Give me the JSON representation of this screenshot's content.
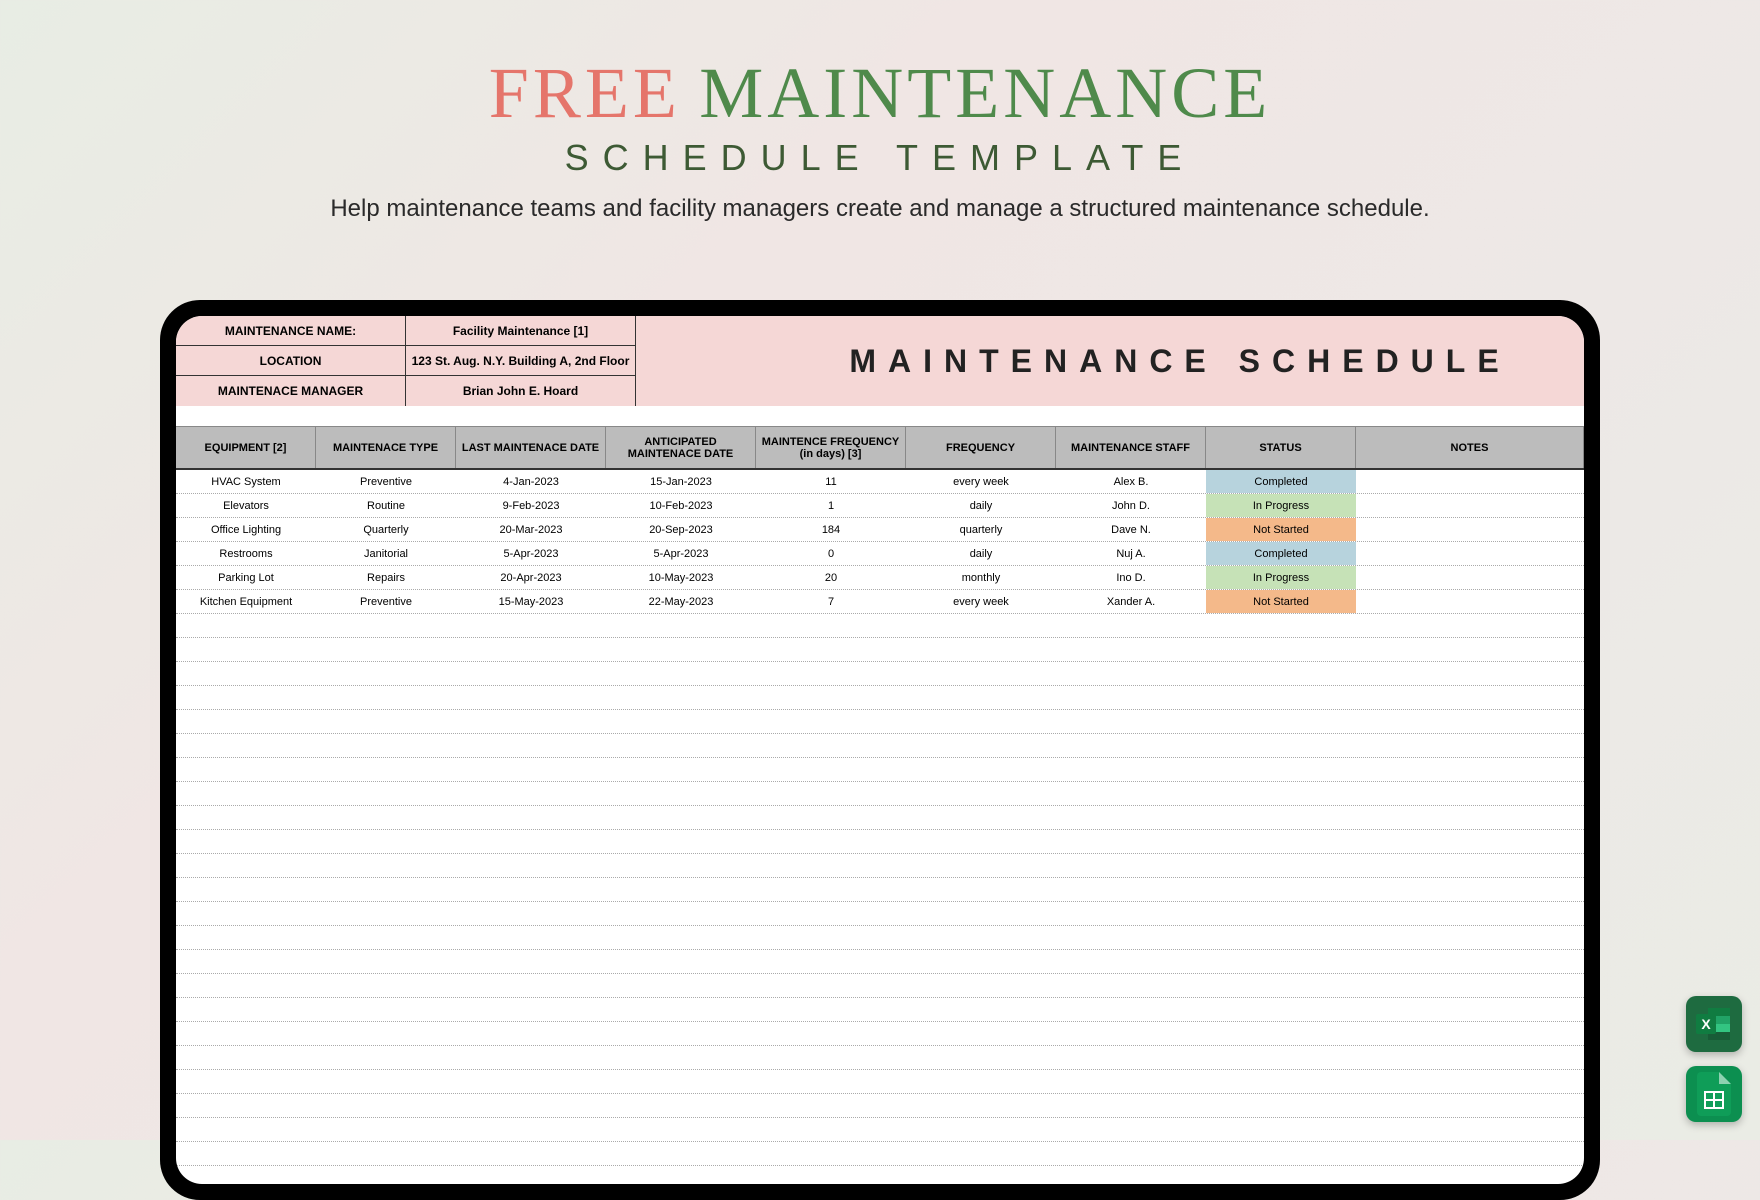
{
  "hero": {
    "title_word1": "FREE",
    "title_word2": "MAINTENANCE",
    "subtitle": "SCHEDULE TEMPLATE",
    "description": "Help maintenance teams and facility managers create and manage a structured maintenance schedule.",
    "colors": {
      "word1": "#e5756b",
      "word2": "#4f8a4b",
      "subtitle": "#3d5a34",
      "desc": "#2a2a2a"
    }
  },
  "sheet": {
    "header_bg": "#f5d7d6",
    "big_title": "MAINTENANCE SCHEDULE",
    "meta": [
      {
        "label": "MAINTENANCE NAME:",
        "value": "Facility Maintenance [1]"
      },
      {
        "label": "LOCATION",
        "value": "123 St. Aug. N.Y. Building A, 2nd Floor"
      },
      {
        "label": "MAINTENACE MANAGER",
        "value": "Brian John E. Hoard"
      }
    ],
    "columns": [
      "EQUIPMENT [2]",
      "MAINTENACE TYPE",
      "LAST MAINTENACE DATE",
      "ANTICIPATED MAINTENACE DATE",
      "MAINTENCE FREQUENCY (in days) [3]",
      "FREQUENCY",
      "MAINTENANCE STAFF",
      "STATUS",
      "NOTES"
    ],
    "column_header_bg": "#bcbcbc",
    "rows": [
      {
        "equipment": "HVAC System",
        "type": "Preventive",
        "last": "4-Jan-2023",
        "anticipated": "15-Jan-2023",
        "days": "11",
        "freq": "every week",
        "staff": "Alex B.",
        "status": "Completed",
        "notes": ""
      },
      {
        "equipment": "Elevators",
        "type": "Routine",
        "last": "9-Feb-2023",
        "anticipated": "10-Feb-2023",
        "days": "1",
        "freq": "daily",
        "staff": "John D.",
        "status": "In Progress",
        "notes": ""
      },
      {
        "equipment": "Office Lighting",
        "type": "Quarterly",
        "last": "20-Mar-2023",
        "anticipated": "20-Sep-2023",
        "days": "184",
        "freq": "quarterly",
        "staff": "Dave N.",
        "status": "Not Started",
        "notes": ""
      },
      {
        "equipment": "Restrooms",
        "type": "Janitorial",
        "last": "5-Apr-2023",
        "anticipated": "5-Apr-2023",
        "days": "0",
        "freq": "daily",
        "staff": "Nuj A.",
        "status": "Completed",
        "notes": ""
      },
      {
        "equipment": "Parking Lot",
        "type": "Repairs",
        "last": "20-Apr-2023",
        "anticipated": "10-May-2023",
        "days": "20",
        "freq": "monthly",
        "staff": "Ino D.",
        "status": "In Progress",
        "notes": ""
      },
      {
        "equipment": "Kitchen Equipment",
        "type": "Preventive",
        "last": "15-May-2023",
        "anticipated": "22-May-2023",
        "days": "7",
        "freq": "every week",
        "staff": "Xander A.",
        "status": "Not Started",
        "notes": ""
      }
    ],
    "status_colors": {
      "Completed": "#b7d3dd",
      "In Progress": "#c6e2b7",
      "Not Started": "#f4b98a"
    },
    "empty_row_count": 26
  },
  "icons": {
    "excel": {
      "bg": "#217346",
      "letter": "X"
    },
    "sheets": {
      "bg": "#0f9d58"
    }
  }
}
